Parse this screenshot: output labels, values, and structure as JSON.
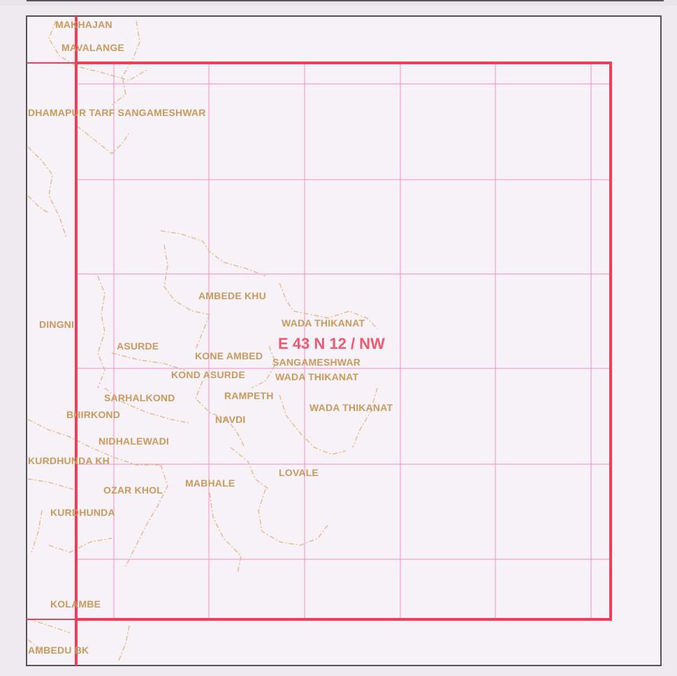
{
  "map": {
    "sheet_label": "E 43 N 12 / NW",
    "colors": {
      "background": "#f6f2f8",
      "outer_border": "#555555",
      "sheet_border": "#ee3e58",
      "grid": "#f08fc4",
      "village_text": "#c99a5c",
      "boundary": "#e3b98a",
      "sheet_label": "#ee5a6f"
    },
    "villages": [
      {
        "name": "MAKHAJAN"
      },
      {
        "name": "MAVALANGE"
      },
      {
        "name": "DHAMAPUR TARF SANGAMESHWAR"
      },
      {
        "name": "AMBEDE KHU"
      },
      {
        "name": "DINGNI"
      },
      {
        "name": "WADA THIKANAT"
      },
      {
        "name": "ASURDE"
      },
      {
        "name": "KONE AMBED"
      },
      {
        "name": "SANGAMESHWAR"
      },
      {
        "name": "KOND ASURDE"
      },
      {
        "name": "WADA THIKANAT"
      },
      {
        "name": "SARHALKOND"
      },
      {
        "name": "RAMPETH"
      },
      {
        "name": "WADA THIKANAT"
      },
      {
        "name": "BHIRKOND"
      },
      {
        "name": "NAVDI"
      },
      {
        "name": "NIDHALEWADI"
      },
      {
        "name": "KURDHUNDA KH"
      },
      {
        "name": "LOVALE"
      },
      {
        "name": "MABHALE"
      },
      {
        "name": "OZAR KHOL"
      },
      {
        "name": "KURDHUNDA"
      },
      {
        "name": "KOLAMBE"
      },
      {
        "name": "AMBEDU BK"
      }
    ]
  }
}
